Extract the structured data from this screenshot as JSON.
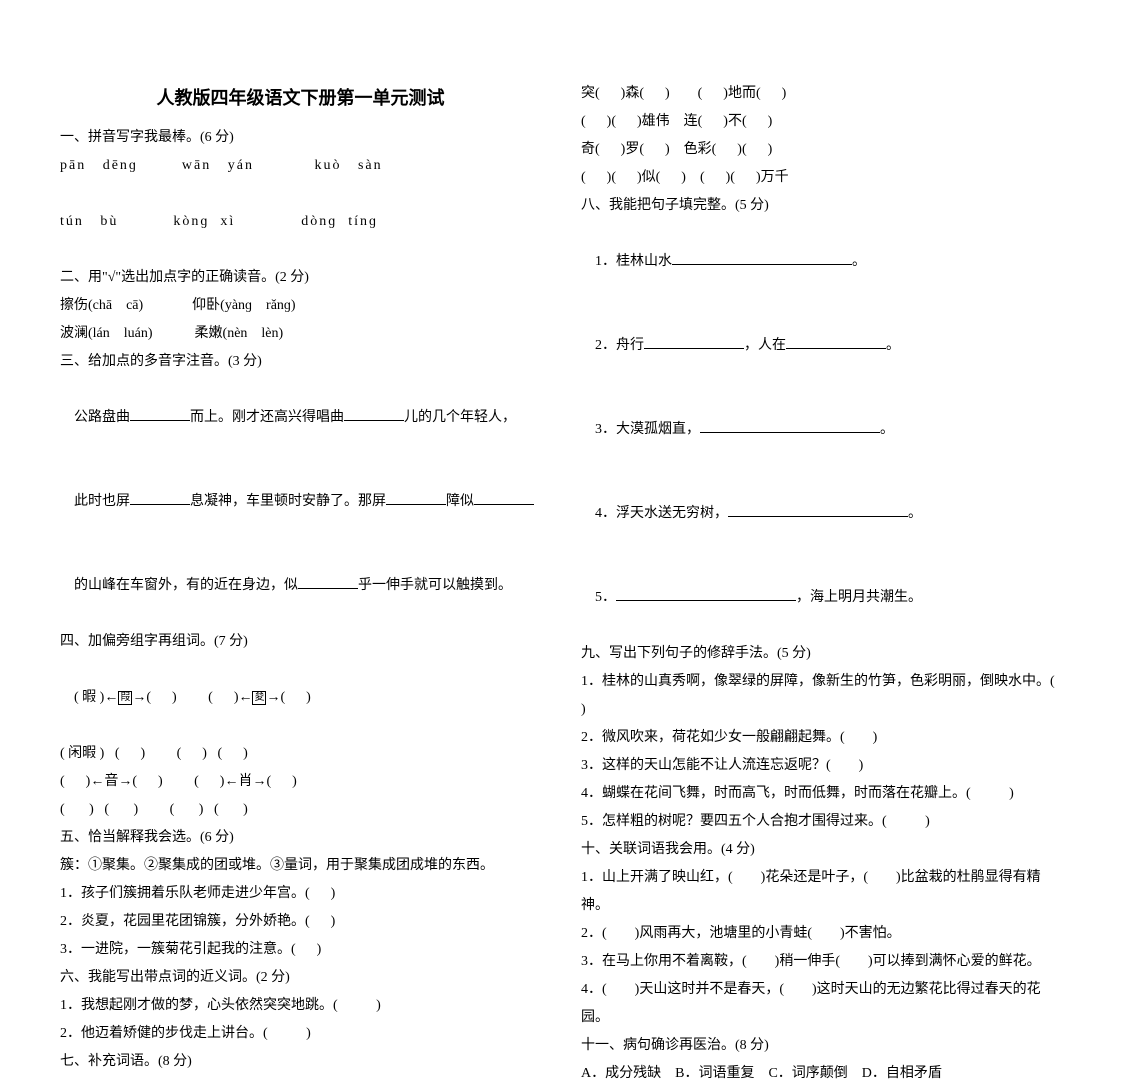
{
  "title": "人教版四年级语文下册第一单元测试",
  "left": {
    "s1h": "一、拼音写字我最棒。(6 分)",
    "s1l1": "pān   dēnɡ        wān   yán           kuò   sàn",
    "s1l2": "tún   bù          kònɡ  xì            dònɡ  tínɡ",
    "s2h": "二、用\"√\"选出加点字的正确读音。(2 分)",
    "s2l1": "擦伤(chā    cā)              仰卧(yànɡ    rǎnɡ)",
    "s2l2": "波澜(lán    luán)            柔嫩(nèn    lèn)",
    "s3h": "三、给加点的多音字注音。(3 分)",
    "s3a": "公路盘曲",
    "s3b": "而上。刚才还高兴得唱曲",
    "s3c": "儿的几个年轻人，",
    "s3d": "此时也屏",
    "s3e": "息凝神，车里顿时安静了。那屏",
    "s3f": "障似",
    "s3g": "的山峰在车窗外，有的近在身边，似",
    "s3h2": "乎一伸手就可以触摸到。",
    "s4h": "四、加偏旁组字再组词。(7 分)",
    "s4l1a": "( 暇 )←",
    "s4l1b": "→(      )         (      )←",
    "s4l1c": "→(      )",
    "s4l2": "( 闲暇 )   (      )         (      )   (      )",
    "s4l3": "(      )←音→(      )         (      )←肖→(      )",
    "s4l4": "(       )   (       )         (       )   (       )",
    "s5h": "五、恰当解释我会选。(6 分)",
    "s5l0": "簇：①聚集。②聚集成的团或堆。③量词，用于聚集成团成堆的东西。",
    "s5l1": "1．孩子们簇拥着乐队老师走进少年宫。(      )",
    "s5l2": "2．炎夏，花园里花团锦簇，分外娇艳。(      )",
    "s5l3": "3．一进院，一簇菊花引起我的注意。(      )",
    "s6h": "六、我能写出带点词的近义词。(2 分)",
    "s6l1": "1．我想起刚才做的梦，心头依然突突地跳。(           )",
    "s6l2": "2．他迈着矫健的步伐走上讲台。(           )",
    "s7h": "七、补充词语。(8 分)"
  },
  "right": {
    "s7l1": "突(      )森(      )        (      )地而(      )",
    "s7l2": "(      )(      )雄伟    连(      )不(      )",
    "s7l3": "奇(      )罗(      )    色彩(      )(      )",
    "s7l4": "(      )(      )似(      )    (      )(      )万千",
    "s8h": "八、我能把句子填完整。(5 分)",
    "s8l1": "1．桂林山水",
    "s8l1b": "。",
    "s8l2": "2．舟行",
    "s8l2b": "，人在",
    "s8l2c": "。",
    "s8l3": "3．大漠孤烟直，",
    "s8l3b": "。",
    "s8l4": "4．浮天水送无穷树，",
    "s8l4b": "。",
    "s8l5": "5．",
    "s8l5b": "，海上明月共潮生。",
    "s9h": "九、写出下列句子的修辞手法。(5 分)",
    "s9l1": "1．桂林的山真秀啊，像翠绿的屏障，像新生的竹笋，色彩明丽，倒映水中。(        )",
    "s9l2": "2．微风吹来，荷花如少女一般翩翩起舞。(        )",
    "s9l3": "3．这样的天山怎能不让人流连忘返呢？(        )",
    "s9l4": "4．蝴蝶在花间飞舞，时而高飞，时而低舞，时而落在花瓣上。(           )",
    "s9l5": "5．怎样粗的树呢？要四五个人合抱才围得过来。(           )",
    "s10h": "十、关联词语我会用。(4 分)",
    "s10l1": "1．山上开满了映山红，(        )花朵还是叶子，(        )比盆栽的杜鹃显得有精神。",
    "s10l2": "2．(        )风雨再大，池塘里的小青蛙(        )不害怕。",
    "s10l3": "3．在马上你用不着离鞍，(        )稍一伸手(        )可以捧到满怀心爱的鲜花。",
    "s10l4": "4．(        )天山这时并不是春天，(        )这时天山的无边繁花比得过春天的花园。",
    "s11h": "十一、病句确诊再医治。(8 分)",
    "s11l1": "A．成分残缺    B．词语重复    C．词序颠倒    D．自相矛盾"
  }
}
